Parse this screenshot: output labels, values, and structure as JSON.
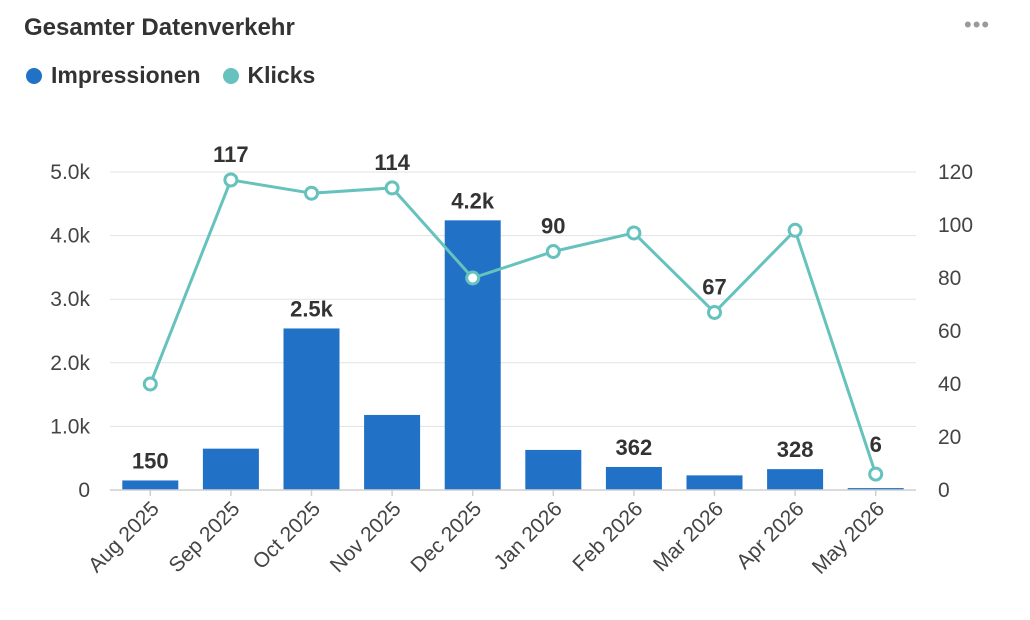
{
  "header": {
    "title": "Gesamter Datenverkehr",
    "more_label": "•••"
  },
  "legend": [
    {
      "label": "Impressionen",
      "color": "#2171c7"
    },
    {
      "label": "Klicks",
      "color": "#66c2bd"
    }
  ],
  "chart_data": {
    "type": "bar",
    "categories": [
      "Aug 2025",
      "Sep 2025",
      "Oct 2025",
      "Nov 2025",
      "Dec 2025",
      "Jan 2026",
      "Feb 2026",
      "Mar 2026",
      "Apr 2026",
      "May 2026"
    ],
    "series": [
      {
        "name": "Impressionen",
        "type": "bar",
        "axis": "left",
        "color": "#2171c7",
        "values": [
          150,
          650,
          2540,
          1180,
          4240,
          630,
          362,
          230,
          328,
          30
        ],
        "labels": [
          "150",
          null,
          "2.5k",
          null,
          "4.2k",
          null,
          "362",
          null,
          "328",
          null
        ]
      },
      {
        "name": "Klicks",
        "type": "line",
        "axis": "right",
        "color": "#66c2bd",
        "values": [
          40,
          117,
          112,
          114,
          80,
          90,
          97,
          67,
          98,
          6
        ],
        "labels": [
          null,
          "117",
          null,
          "114",
          null,
          "90",
          null,
          "67",
          null,
          "6"
        ]
      }
    ],
    "y_left": {
      "lim": [
        0,
        5000
      ],
      "ticks": [
        0,
        1000,
        2000,
        3000,
        4000,
        5000
      ],
      "tick_labels": [
        "0",
        "1.0k",
        "2.0k",
        "3.0k",
        "4.0k",
        "5.0k"
      ]
    },
    "y_right": {
      "lim": [
        0,
        120
      ],
      "ticks": [
        0,
        20,
        40,
        60,
        80,
        100,
        120
      ],
      "tick_labels": [
        "0",
        "20",
        "40",
        "60",
        "80",
        "100",
        "120"
      ]
    },
    "grid": true,
    "legend_position": "top-left"
  }
}
